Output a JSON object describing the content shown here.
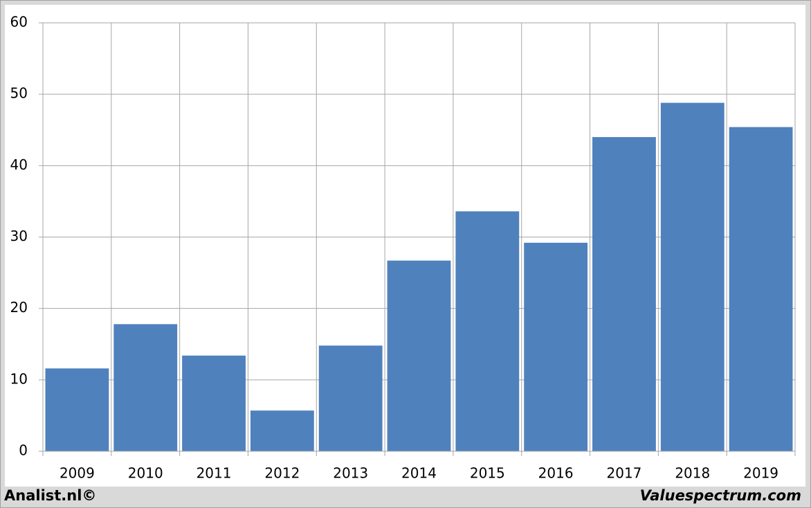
{
  "chart_data": {
    "type": "bar",
    "categories": [
      "2009",
      "2010",
      "2011",
      "2012",
      "2013",
      "2014",
      "2015",
      "2016",
      "2017",
      "2018",
      "2019"
    ],
    "values": [
      11.6,
      17.8,
      13.4,
      5.7,
      14.8,
      26.7,
      33.6,
      29.2,
      44.0,
      48.8,
      45.4
    ],
    "color": "#4f81bd",
    "ylim": [
      0,
      60
    ],
    "yticks": [
      0,
      10,
      20,
      30,
      40,
      50,
      60
    ],
    "grid": true,
    "annotations": [
      "Analist.nl©",
      "Valuespectrum.com"
    ]
  }
}
